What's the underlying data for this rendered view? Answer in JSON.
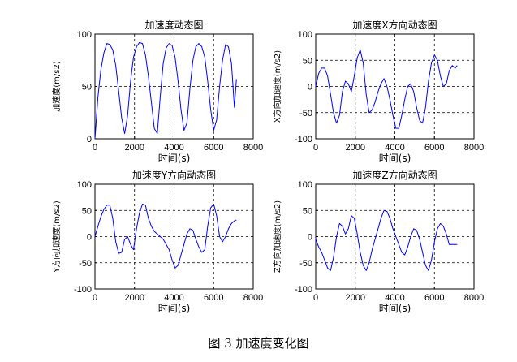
{
  "figure_caption": "图 3  加速度变化图",
  "chart_data": [
    {
      "type": "line",
      "title": "加速度动态图",
      "xlabel": "时间(s)",
      "ylabel": "加速度(m/s2)",
      "xlim": [
        0,
        8000
      ],
      "ylim": [
        0,
        100
      ],
      "xticks": [
        0,
        2000,
        4000,
        6000,
        8000
      ],
      "yticks": [
        0,
        50,
        100
      ],
      "grid": true,
      "color": "#0000ff",
      "x": [
        0,
        150,
        300,
        450,
        600,
        750,
        900,
        1050,
        1200,
        1350,
        1500,
        1650,
        1800,
        1950,
        2100,
        2250,
        2400,
        2550,
        2700,
        2850,
        3000,
        3150,
        3300,
        3450,
        3600,
        3750,
        3900,
        4050,
        4200,
        4350,
        4500,
        4650,
        4800,
        4950,
        5100,
        5250,
        5400,
        5550,
        5700,
        5850,
        6000,
        6150,
        6300,
        6450,
        6600,
        6750,
        6900,
        7050,
        7150
      ],
      "y": [
        0,
        40,
        66,
        82,
        91,
        90,
        85,
        70,
        45,
        20,
        5,
        22,
        55,
        78,
        88,
        92,
        91,
        80,
        60,
        35,
        10,
        5,
        40,
        72,
        87,
        91,
        89,
        78,
        55,
        28,
        8,
        15,
        48,
        75,
        88,
        91,
        88,
        78,
        55,
        28,
        8,
        18,
        50,
        75,
        90,
        88,
        72,
        30,
        57
      ]
    },
    {
      "type": "line",
      "title": "加速度X方向动态图",
      "xlabel": "时间(s)",
      "ylabel": "X方向加速度(m/s2)",
      "xlim": [
        0,
        8000
      ],
      "ylim": [
        -100,
        100
      ],
      "xticks": [
        0,
        2000,
        4000,
        6000,
        8000
      ],
      "yticks": [
        -100,
        -50,
        0,
        50,
        100
      ],
      "grid": true,
      "color": "#0000ff",
      "x": [
        0,
        150,
        300,
        450,
        600,
        750,
        900,
        1050,
        1200,
        1350,
        1500,
        1650,
        1800,
        1950,
        2100,
        2250,
        2400,
        2550,
        2700,
        2850,
        3000,
        3150,
        3300,
        3450,
        3600,
        3750,
        3900,
        4050,
        4200,
        4350,
        4500,
        4650,
        4800,
        4950,
        5100,
        5250,
        5400,
        5550,
        5700,
        5850,
        6000,
        6150,
        6300,
        6450,
        6600,
        6750,
        6900,
        7050,
        7150
      ],
      "y": [
        0,
        25,
        35,
        35,
        20,
        -15,
        -50,
        -70,
        -55,
        -10,
        10,
        5,
        -10,
        20,
        55,
        70,
        45,
        -15,
        -50,
        -45,
        -30,
        -10,
        5,
        15,
        0,
        -25,
        -55,
        -80,
        -80,
        -55,
        -25,
        0,
        5,
        -10,
        -40,
        -65,
        -70,
        -40,
        10,
        45,
        60,
        50,
        20,
        0,
        5,
        30,
        40,
        35,
        40
      ]
    },
    {
      "type": "line",
      "title": "加速度Y方向动态图",
      "xlabel": "时间(s)",
      "ylabel": "Y方向加速度(m/s2)",
      "xlim": [
        0,
        8000
      ],
      "ylim": [
        -100,
        100
      ],
      "xticks": [
        0,
        2000,
        4000,
        6000,
        8000
      ],
      "yticks": [
        -100,
        -50,
        0,
        50,
        100
      ],
      "grid": true,
      "color": "#0000ff",
      "x": [
        0,
        150,
        300,
        450,
        600,
        750,
        900,
        1050,
        1200,
        1350,
        1500,
        1650,
        1800,
        1950,
        2100,
        2250,
        2400,
        2550,
        2700,
        2850,
        3000,
        3150,
        3300,
        3450,
        3600,
        3750,
        3900,
        4050,
        4200,
        4350,
        4500,
        4650,
        4800,
        4950,
        5100,
        5250,
        5400,
        5550,
        5700,
        5850,
        6000,
        6150,
        6300,
        6450,
        6600,
        6750,
        6900,
        7050,
        7150
      ],
      "y": [
        0,
        20,
        38,
        52,
        60,
        60,
        35,
        -10,
        -32,
        -30,
        -5,
        0,
        -15,
        -25,
        15,
        45,
        62,
        60,
        35,
        20,
        10,
        5,
        0,
        -5,
        -15,
        -25,
        -45,
        -60,
        -55,
        -35,
        -15,
        5,
        15,
        12,
        -5,
        -20,
        -30,
        -25,
        20,
        55,
        62,
        40,
        0,
        -10,
        0,
        15,
        25,
        30,
        32
      ]
    },
    {
      "type": "line",
      "title": "加速度Z方向动态图",
      "xlabel": "时间(s)",
      "ylabel": "Z方向加速度(m/s2)",
      "xlim": [
        0,
        8000
      ],
      "ylim": [
        -100,
        100
      ],
      "xticks": [
        0,
        2000,
        4000,
        6000,
        8000
      ],
      "yticks": [
        -100,
        -50,
        0,
        50,
        100
      ],
      "grid": true,
      "color": "#0000ff",
      "x": [
        0,
        150,
        300,
        450,
        600,
        750,
        900,
        1050,
        1200,
        1350,
        1500,
        1650,
        1800,
        1950,
        2100,
        2250,
        2400,
        2550,
        2700,
        2850,
        3000,
        3150,
        3300,
        3450,
        3600,
        3750,
        3900,
        4050,
        4200,
        4350,
        4500,
        4650,
        4800,
        4950,
        5100,
        5250,
        5400,
        5550,
        5700,
        5850,
        6000,
        6150,
        6300,
        6450,
        6600,
        6750,
        6900,
        7050,
        7150
      ],
      "y": [
        -5,
        -20,
        -30,
        -45,
        -60,
        -65,
        -40,
        0,
        25,
        20,
        5,
        15,
        40,
        35,
        5,
        -30,
        -55,
        -65,
        -50,
        -25,
        -5,
        15,
        35,
        50,
        48,
        35,
        15,
        0,
        -15,
        -30,
        -35,
        -20,
        0,
        15,
        12,
        -5,
        -30,
        -55,
        -65,
        -45,
        -10,
        15,
        25,
        20,
        5,
        -15,
        -15,
        -15,
        -15
      ]
    }
  ]
}
